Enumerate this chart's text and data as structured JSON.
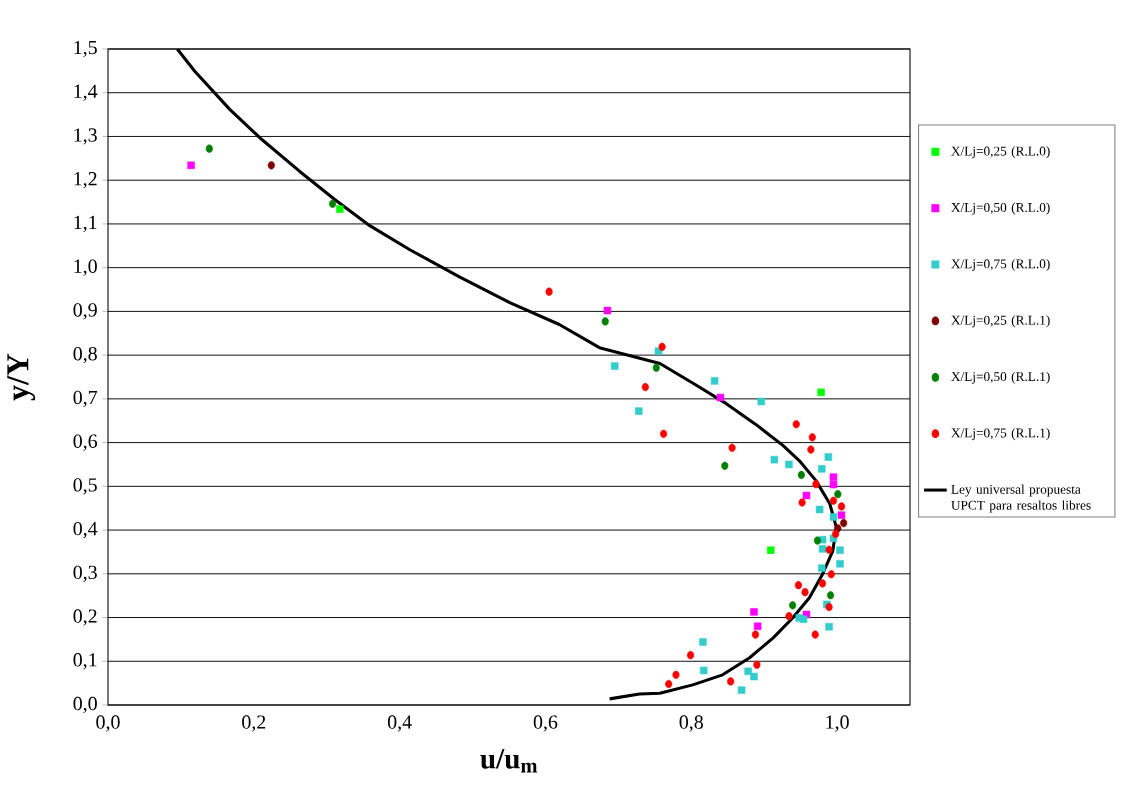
{
  "chart_data": {
    "type": "scatter",
    "xlabel": "u/u$_{m}$",
    "ylabel": "y/Y",
    "xlim": [
      0,
      1.1
    ],
    "ylim": [
      0,
      1.5
    ],
    "xticks": [
      {
        "value": 0,
        "label": "0,0"
      },
      {
        "value": 0.2,
        "label": "0,2"
      },
      {
        "value": 0.4,
        "label": "0,4"
      },
      {
        "value": 0.6,
        "label": "0,6"
      },
      {
        "value": 0.8,
        "label": "0,8"
      },
      {
        "value": 1.0,
        "label": "1,0"
      }
    ],
    "yticks": [
      {
        "value": 0,
        "label": "0,0"
      },
      {
        "value": 0.1,
        "label": "0,1"
      },
      {
        "value": 0.2,
        "label": "0,2"
      },
      {
        "value": 0.3,
        "label": "0,3"
      },
      {
        "value": 0.4,
        "label": "0,4"
      },
      {
        "value": 0.5,
        "label": "0,5"
      },
      {
        "value": 0.6,
        "label": "0,6"
      },
      {
        "value": 0.7,
        "label": "0,7"
      },
      {
        "value": 0.8,
        "label": "0,8"
      },
      {
        "value": 0.9,
        "label": "0,9"
      },
      {
        "value": 1.0,
        "label": "1,0"
      },
      {
        "value": 1.1,
        "label": "1,1"
      },
      {
        "value": 1.2,
        "label": "1,2"
      },
      {
        "value": 1.3,
        "label": "1,3"
      },
      {
        "value": 1.4,
        "label": "1,4"
      },
      {
        "value": 1.5,
        "label": "1,5"
      }
    ],
    "grid": "y",
    "legend": "right",
    "series": [
      {
        "name": "X/Lj=0,25 (R.L.0)",
        "marker": "square",
        "color": "#00ff00",
        "x": [
          0.318,
          0.978,
          0.909
        ],
        "values": [
          1.134,
          0.715,
          0.354
        ]
      },
      {
        "name": "X/Lj=0,50 (R.L.0)",
        "marker": "square",
        "color": "#ff00ff",
        "x": [
          0.114,
          0.685,
          0.84,
          0.995,
          0.995,
          0.958,
          1.006,
          0.886,
          0.891,
          0.958
        ],
        "values": [
          1.234,
          0.902,
          0.703,
          0.521,
          0.504,
          0.479,
          0.434,
          0.213,
          0.18,
          0.207
        ]
      },
      {
        "name": "X/Lj=0,75 (R.L.0)",
        "marker": "square",
        "color": "#33cccc",
        "x": [
          0.695,
          0.728,
          0.755,
          0.816,
          0.817,
          0.832,
          0.869,
          0.878,
          0.886,
          0.896,
          0.914,
          0.934,
          0.948,
          0.954,
          0.976,
          0.979,
          0.979,
          0.98,
          0.98,
          0.986,
          0.988,
          0.989,
          0.995,
          0.995,
          1.004,
          1.004
        ],
        "values": [
          0.775,
          0.672,
          0.809,
          0.144,
          0.079,
          0.741,
          0.034,
          0.077,
          0.065,
          0.694,
          0.561,
          0.55,
          0.199,
          0.196,
          0.447,
          0.54,
          0.313,
          0.378,
          0.357,
          0.23,
          0.567,
          0.179,
          0.43,
          0.381,
          0.354,
          0.323
        ]
      },
      {
        "name": "X/Lj=0,25 (R.L.1)",
        "marker": "circle",
        "color": "#800000",
        "x": [
          0.224,
          1.009,
          1.001
        ],
        "values": [
          1.234,
          0.416,
          0.404
        ]
      },
      {
        "name": "X/Lj=0,50 (R.L.1)",
        "marker": "circle",
        "color": "#008000",
        "x": [
          0.139,
          0.308,
          0.682,
          0.752,
          0.846,
          0.951,
          1.001,
          0.973,
          0.991,
          0.939
        ],
        "values": [
          1.272,
          1.146,
          0.877,
          0.771,
          0.547,
          0.526,
          0.482,
          0.376,
          0.251,
          0.228
        ]
      },
      {
        "name": "X/Lj=0,75 (R.L.1)",
        "marker": "circle",
        "color": "#ff0000",
        "x": [
          0.605,
          0.76,
          0.737,
          0.762,
          0.856,
          0.944,
          0.966,
          0.964,
          0.971,
          0.952,
          0.995,
          1.006,
          0.998,
          0.989,
          0.992,
          0.98,
          0.947,
          0.956,
          0.989,
          0.934,
          0.97,
          0.888,
          0.89,
          0.854,
          0.799,
          0.779,
          0.769
        ],
        "values": [
          0.945,
          0.819,
          0.727,
          0.62,
          0.588,
          0.642,
          0.612,
          0.584,
          0.505,
          0.463,
          0.467,
          0.454,
          0.391,
          0.355,
          0.299,
          0.278,
          0.274,
          0.258,
          0.224,
          0.203,
          0.161,
          0.161,
          0.092,
          0.054,
          0.114,
          0.069,
          0.048
        ]
      },
      {
        "name": "Ley universal propuesta UPCT para resaltos libres",
        "type": "line",
        "marker": "none",
        "line_style": "solid",
        "color": "#000000",
        "x": [
          0.688,
          0.729,
          0.757,
          0.802,
          0.843,
          0.88,
          0.912,
          0.939,
          0.962,
          0.98,
          0.994,
          0.999,
          0.99,
          0.971,
          0.948,
          0.926,
          0.889,
          0.848,
          0.807,
          0.757,
          0.674,
          0.619,
          0.551,
          0.482,
          0.414,
          0.359,
          0.311,
          0.263,
          0.211,
          0.167,
          0.119,
          0.095
        ],
        "values": [
          0.014,
          0.025,
          0.027,
          0.046,
          0.069,
          0.108,
          0.153,
          0.199,
          0.245,
          0.299,
          0.352,
          0.406,
          0.46,
          0.513,
          0.559,
          0.593,
          0.641,
          0.689,
          0.731,
          0.781,
          0.817,
          0.87,
          0.92,
          0.979,
          1.041,
          1.096,
          1.156,
          1.22,
          1.293,
          1.362,
          1.449,
          1.5
        ]
      }
    ]
  }
}
